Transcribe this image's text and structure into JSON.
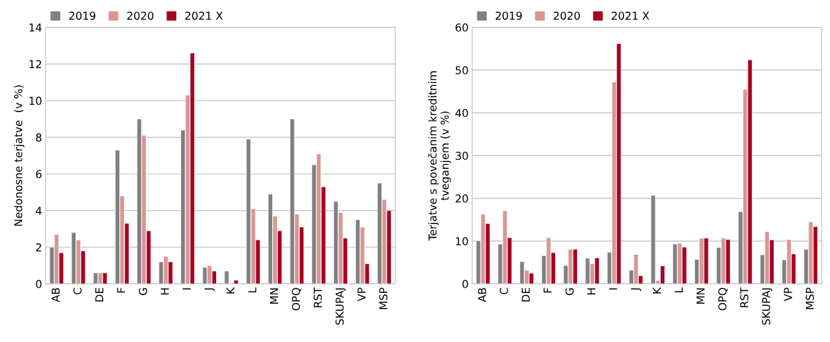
{
  "chart_data": [
    {
      "type": "bar",
      "ylabel": "Nedonosne terjatve  (v %)",
      "categories": [
        "AB",
        "C",
        "DE",
        "F",
        "G",
        "H",
        "I",
        "J",
        "K",
        "L",
        "MN",
        "OPQ",
        "RST",
        "SKUPAJ",
        "VP",
        "MSP"
      ],
      "series": [
        {
          "name": "2019",
          "color": "#808080",
          "values": [
            2.0,
            2.8,
            0.6,
            7.3,
            9.0,
            1.2,
            8.4,
            0.9,
            0.7,
            7.9,
            4.9,
            9.0,
            6.5,
            4.5,
            3.5,
            5.5
          ]
        },
        {
          "name": "2020",
          "color": "#d99694",
          "values": [
            2.7,
            2.4,
            0.6,
            4.8,
            8.1,
            1.5,
            10.3,
            1.0,
            null,
            4.1,
            3.7,
            3.8,
            7.1,
            3.9,
            3.1,
            4.6
          ]
        },
        {
          "name": "2021 X",
          "color": "#a50021",
          "values": [
            1.7,
            1.8,
            0.6,
            3.3,
            2.9,
            1.2,
            12.6,
            0.7,
            0.2,
            2.4,
            2.9,
            3.1,
            5.3,
            2.5,
            1.1,
            4.0
          ]
        }
      ],
      "ylim": [
        0,
        14
      ],
      "yticks": [
        0,
        2,
        4,
        6,
        8,
        10,
        12,
        14
      ],
      "grid": "y",
      "legend": "top left"
    },
    {
      "type": "bar",
      "ylabel": "Terjatve s povečanim kreditnim\ntveganjem (v %)",
      "categories": [
        "AB",
        "C",
        "DE",
        "F",
        "G",
        "H",
        "I",
        "J",
        "K",
        "L",
        "MN",
        "OPQ",
        "RST",
        "SKUPAJ",
        "VP",
        "MSP"
      ],
      "series": [
        {
          "name": "2019",
          "color": "#808080",
          "values": [
            10.1,
            9.3,
            5.2,
            6.6,
            4.3,
            6.0,
            7.4,
            3.2,
            20.7,
            9.3,
            5.7,
            8.5,
            16.9,
            6.8,
            5.6,
            8.1
          ]
        },
        {
          "name": "2020",
          "color": "#d99694",
          "values": [
            16.3,
            17.1,
            3.2,
            10.8,
            8.1,
            4.7,
            47.2,
            6.9,
            0.8,
            9.5,
            10.7,
            10.7,
            45.5,
            12.2,
            10.4,
            14.5
          ]
        },
        {
          "name": "2021 X",
          "color": "#a50021",
          "values": [
            14.1,
            10.8,
            2.5,
            7.3,
            8.1,
            6.1,
            56.2,
            1.9,
            4.2,
            8.6,
            10.7,
            10.4,
            52.4,
            10.3,
            7.0,
            13.4
          ]
        }
      ],
      "ylim": [
        0,
        60
      ],
      "yticks": [
        0,
        10,
        20,
        30,
        40,
        50,
        60
      ],
      "grid": "y",
      "legend": "top left"
    }
  ]
}
